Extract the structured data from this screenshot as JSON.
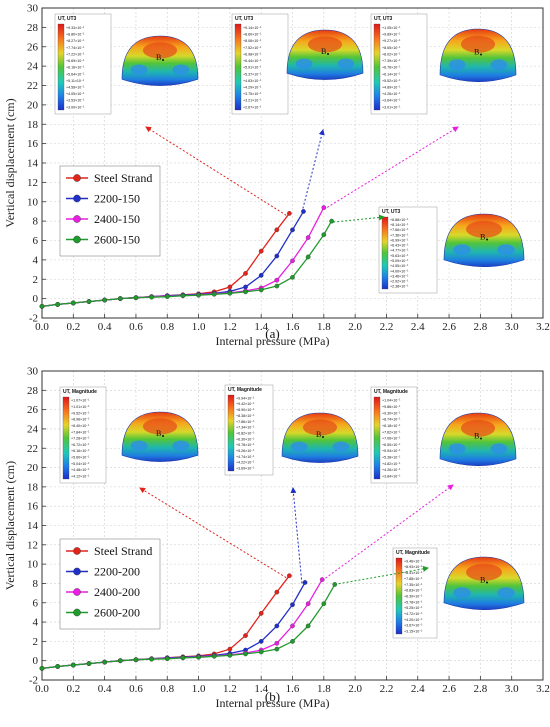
{
  "chart_data": [
    {
      "type": "line",
      "panel_label": "(a)",
      "xlabel": "Internal pressure (MPa)",
      "ylabel": "Vertical displacement (cm)",
      "xlim": [
        0.0,
        3.2
      ],
      "ylim": [
        -2,
        30
      ],
      "xticks": [
        "0.0",
        "0.2",
        "0.4",
        "0.6",
        "0.8",
        "1.0",
        "1.2",
        "1.4",
        "1.6",
        "1.8",
        "2.0",
        "2.2",
        "2.4",
        "2.6",
        "2.8",
        "3.0",
        "3.2"
      ],
      "yticks": [
        "-2",
        "0",
        "2",
        "4",
        "6",
        "8",
        "10",
        "12",
        "14",
        "16",
        "18",
        "20",
        "22",
        "24",
        "26",
        "28",
        "30"
      ],
      "legend_position": "middle-left",
      "series": [
        {
          "name": "Steel Strand",
          "color": "#e0231b",
          "x": [
            0.0,
            0.1,
            0.2,
            0.3,
            0.4,
            0.5,
            0.6,
            0.7,
            0.8,
            0.9,
            1.0,
            1.1,
            1.2,
            1.3,
            1.4,
            1.5,
            1.58
          ],
          "y": [
            -0.8,
            -0.6,
            -0.45,
            -0.3,
            -0.15,
            0.0,
            0.1,
            0.2,
            0.3,
            0.4,
            0.5,
            0.7,
            1.2,
            2.6,
            4.9,
            7.1,
            8.8
          ]
        },
        {
          "name": "2200-150",
          "color": "#1f2fc8",
          "x": [
            0.0,
            0.1,
            0.2,
            0.3,
            0.4,
            0.5,
            0.6,
            0.7,
            0.8,
            0.9,
            1.0,
            1.1,
            1.2,
            1.3,
            1.4,
            1.5,
            1.6,
            1.67
          ],
          "y": [
            -0.8,
            -0.6,
            -0.45,
            -0.3,
            -0.15,
            0.0,
            0.1,
            0.2,
            0.3,
            0.35,
            0.45,
            0.55,
            0.75,
            1.2,
            2.4,
            4.4,
            7.1,
            9.0
          ]
        },
        {
          "name": "2400-150",
          "color": "#e81fe0",
          "x": [
            0.0,
            0.1,
            0.2,
            0.3,
            0.4,
            0.5,
            0.6,
            0.7,
            0.8,
            0.9,
            1.0,
            1.1,
            1.2,
            1.3,
            1.4,
            1.5,
            1.6,
            1.7,
            1.8
          ],
          "y": [
            -0.8,
            -0.6,
            -0.45,
            -0.3,
            -0.15,
            0.0,
            0.1,
            0.2,
            0.25,
            0.3,
            0.4,
            0.5,
            0.6,
            0.8,
            1.1,
            1.9,
            3.9,
            6.3,
            9.4
          ]
        },
        {
          "name": "2600-150",
          "color": "#1f9a2c",
          "x": [
            0.0,
            0.1,
            0.2,
            0.3,
            0.4,
            0.5,
            0.6,
            0.7,
            0.8,
            0.9,
            1.0,
            1.1,
            1.2,
            1.3,
            1.4,
            1.5,
            1.6,
            1.7,
            1.8,
            1.85
          ],
          "y": [
            -0.8,
            -0.6,
            -0.45,
            -0.3,
            -0.15,
            0.0,
            0.1,
            0.15,
            0.2,
            0.3,
            0.35,
            0.45,
            0.55,
            0.7,
            0.9,
            1.3,
            2.2,
            4.3,
            6.6,
            8.0
          ]
        }
      ],
      "insets": [
        {
          "title": "UT, UT3",
          "point_label": "B",
          "values": [
            "+9.33×10⁻¹",
            "+8.80×10⁻¹",
            "+8.27×10⁻¹",
            "+7.74×10⁻¹",
            "+7.22×10⁻¹",
            "+6.69×10⁻¹",
            "+6.16×10⁻¹",
            "+5.64×10⁻¹",
            "+5.11×10⁻¹",
            "+4.58×10⁻¹",
            "+4.05×10⁻¹",
            "+3.53×10⁻¹",
            "+3.00×10⁻¹"
          ]
        },
        {
          "title": "UT, UT3",
          "point_label": "B",
          "values": [
            "+9.14×10⁻¹",
            "+8.60×10⁻¹",
            "+8.06×10⁻¹",
            "+7.52×10⁻¹",
            "+6.98×10⁻¹",
            "+6.44×10⁻¹",
            "+5.91×10⁻¹",
            "+5.37×10⁻¹",
            "+4.83×10⁻¹",
            "+4.29×10⁻¹",
            "+3.75×10⁻¹",
            "+3.21×10⁻¹",
            "+2.67×10⁻¹"
          ]
        },
        {
          "title": "UT, UT3",
          "point_label": "B",
          "values": [
            "+1.05×10⁻¹",
            "+9.89×10⁻¹",
            "+9.27×10⁻¹",
            "+8.65×10⁻¹",
            "+8.02×10⁻¹",
            "+7.39×10⁻¹",
            "+6.76×10⁻¹",
            "+6.14×10⁻¹",
            "+5.52×10⁻¹",
            "+4.89×10⁻¹",
            "+4.26×10⁻¹",
            "+3.64×10⁻¹",
            "+3.01×10⁻¹"
          ]
        },
        {
          "title": "UT, UT3",
          "point_label": "B",
          "values": [
            "+8.88×10⁻¹",
            "+8.14×10⁻¹",
            "+7.66×10⁻¹",
            "+7.36×10⁻¹",
            "+6.99×10⁻¹",
            "+6.43×10⁻¹",
            "+4.77×10⁻¹",
            "+5.63×10⁻¹",
            "+5.09×10⁻¹",
            "+4.55×10⁻¹",
            "+4.00×10⁻¹",
            "+3.46×10⁻¹",
            "+2.92×10⁻¹",
            "+2.38×10⁻¹"
          ]
        }
      ]
    },
    {
      "type": "line",
      "panel_label": "(b)",
      "xlabel": "Internal pressure (MPa)",
      "ylabel": "Vertical displacement (cm)",
      "xlim": [
        0.0,
        3.2
      ],
      "ylim": [
        -2,
        30
      ],
      "xticks": [
        "0.0",
        "0.2",
        "0.4",
        "0.6",
        "0.8",
        "1.0",
        "1.2",
        "1.4",
        "1.6",
        "1.8",
        "2.0",
        "2.2",
        "2.4",
        "2.6",
        "2.8",
        "3.0",
        "3.2"
      ],
      "yticks": [
        "-2",
        "0",
        "2",
        "4",
        "6",
        "8",
        "10",
        "12",
        "14",
        "16",
        "18",
        "20",
        "22",
        "24",
        "26",
        "28",
        "30"
      ],
      "legend_position": "middle-left",
      "series": [
        {
          "name": "Steel Strand",
          "color": "#e0231b",
          "x": [
            0.0,
            0.1,
            0.2,
            0.3,
            0.4,
            0.5,
            0.6,
            0.7,
            0.8,
            0.9,
            1.0,
            1.1,
            1.2,
            1.3,
            1.4,
            1.5,
            1.58
          ],
          "y": [
            -0.8,
            -0.6,
            -0.45,
            -0.3,
            -0.15,
            0.0,
            0.1,
            0.2,
            0.3,
            0.4,
            0.5,
            0.7,
            1.2,
            2.6,
            4.9,
            7.1,
            8.8
          ]
        },
        {
          "name": "2200-200",
          "color": "#1f2fc8",
          "x": [
            0.0,
            0.1,
            0.2,
            0.3,
            0.4,
            0.5,
            0.6,
            0.7,
            0.8,
            0.9,
            1.0,
            1.1,
            1.2,
            1.3,
            1.4,
            1.5,
            1.6,
            1.68
          ],
          "y": [
            -0.8,
            -0.6,
            -0.45,
            -0.3,
            -0.15,
            0.0,
            0.1,
            0.2,
            0.3,
            0.35,
            0.45,
            0.55,
            0.75,
            1.1,
            2.0,
            3.6,
            5.8,
            8.1
          ]
        },
        {
          "name": "2400-200",
          "color": "#e81fe0",
          "x": [
            0.0,
            0.1,
            0.2,
            0.3,
            0.4,
            0.5,
            0.6,
            0.7,
            0.8,
            0.9,
            1.0,
            1.1,
            1.2,
            1.3,
            1.4,
            1.5,
            1.6,
            1.7,
            1.79
          ],
          "y": [
            -0.8,
            -0.6,
            -0.45,
            -0.3,
            -0.15,
            0.0,
            0.1,
            0.2,
            0.25,
            0.3,
            0.4,
            0.5,
            0.6,
            0.8,
            1.1,
            1.8,
            3.6,
            5.9,
            8.4
          ]
        },
        {
          "name": "2600-200",
          "color": "#1f9a2c",
          "x": [
            0.0,
            0.1,
            0.2,
            0.3,
            0.4,
            0.5,
            0.6,
            0.7,
            0.8,
            0.9,
            1.0,
            1.1,
            1.2,
            1.3,
            1.4,
            1.5,
            1.6,
            1.7,
            1.8,
            1.87
          ],
          "y": [
            -0.8,
            -0.6,
            -0.45,
            -0.3,
            -0.15,
            0.0,
            0.1,
            0.15,
            0.2,
            0.3,
            0.35,
            0.45,
            0.55,
            0.7,
            0.9,
            1.2,
            2.0,
            3.6,
            5.9,
            7.9
          ]
        }
      ],
      "insets": [
        {
          "title": "UT, Magnitude",
          "point_label": "B",
          "values": [
            "+1.07×10⁻¹",
            "+1.01×10⁻¹",
            "+9.52×10⁻¹",
            "+8.96×10⁻¹",
            "+8.40×10⁻¹",
            "+7.84×10⁻¹",
            "+7.28×10⁻¹",
            "+6.72×10⁻¹",
            "+6.16×10⁻¹",
            "+5.60×10⁻¹",
            "+5.04×10⁻¹",
            "+4.48×10⁻¹",
            "+4.12×10⁻¹"
          ]
        },
        {
          "title": "UT, Magnitude",
          "point_label": "B",
          "values": [
            "+9.94×10⁻¹",
            "+9.42×10⁻¹",
            "+8.90×10⁻¹",
            "+8.38×10⁻¹",
            "+7.86×10⁻¹",
            "+7.34×10⁻¹",
            "+6.82×10⁻¹",
            "+6.30×10⁻¹",
            "+5.78×10⁻¹",
            "+5.26×10⁻¹",
            "+4.74×10⁻¹",
            "+4.22×10⁻¹",
            "+3.69×10⁻¹"
          ]
        },
        {
          "title": "UT, Magnitude",
          "point_label": "B",
          "values": [
            "+1.04×10⁻¹",
            "+9.86×10⁻¹",
            "+9.30×10⁻¹",
            "+8.74×10⁻¹",
            "+8.18×10⁻¹",
            "+7.62×10⁻¹",
            "+7.06×10⁻¹",
            "+6.50×10⁻¹",
            "+5.94×10⁻¹",
            "+5.38×10⁻¹",
            "+4.82×10⁻¹",
            "+4.26×10⁻¹",
            "+3.84×10⁻¹"
          ]
        },
        {
          "title": "UT, Magnitude",
          "point_label": "B",
          "values": [
            "+9.46×10⁻¹",
            "+8.93×10⁻¹",
            "+8.41×10⁻¹",
            "+7.88×10⁻¹",
            "+7.35×10⁻¹",
            "+6.83×10⁻¹",
            "+6.30×10⁻¹",
            "+5.78×10⁻¹",
            "+5.25×10⁻¹",
            "+4.72×10⁻¹",
            "+4.20×10⁻¹",
            "+3.67×10⁻¹",
            "+3.15×10⁻¹"
          ]
        }
      ]
    }
  ]
}
